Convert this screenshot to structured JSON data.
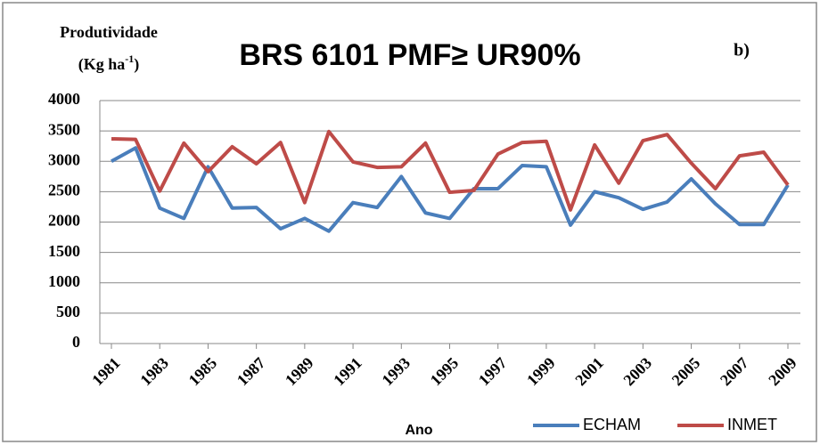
{
  "chart_data": {
    "type": "line",
    "title": "BRS 6101 PMF≥ UR90%",
    "annotation": "b)",
    "ylabel": {
      "line1": "Produtividade",
      "line2": "(Kg ha",
      "sup": "-1",
      "end": ")"
    },
    "xlabel": "Ano",
    "x": [
      1981,
      1982,
      1983,
      1984,
      1985,
      1986,
      1987,
      1988,
      1989,
      1990,
      1991,
      1992,
      1993,
      1994,
      1995,
      1996,
      1997,
      1998,
      1999,
      2000,
      2001,
      2002,
      2003,
      2004,
      2005,
      2006,
      2007,
      2008,
      2009
    ],
    "xlim": [
      1981,
      2009
    ],
    "xticks": [
      1981,
      1983,
      1985,
      1987,
      1989,
      1991,
      1993,
      1995,
      1997,
      1999,
      2001,
      2003,
      2005,
      2007,
      2009
    ],
    "ylim": [
      0,
      4000
    ],
    "yticks": [
      0,
      500,
      1000,
      1500,
      2000,
      2500,
      3000,
      3500,
      4000
    ],
    "grid": true,
    "legend": "bottom-right",
    "series": [
      {
        "name": "ECHAM",
        "color": "#4a7ebb",
        "values": [
          3000,
          3220,
          2230,
          2060,
          2910,
          2230,
          2240,
          1890,
          2060,
          1850,
          2320,
          2240,
          2750,
          2150,
          2060,
          2550,
          2550,
          2930,
          2910,
          1950,
          2500,
          2400,
          2210,
          2330,
          2710,
          2300,
          1960,
          1960,
          2610
        ]
      },
      {
        "name": "INMET",
        "color": "#be4b48",
        "values": [
          3370,
          3360,
          2510,
          3300,
          2830,
          3240,
          2960,
          3310,
          2320,
          3490,
          2990,
          2900,
          2910,
          3300,
          2490,
          2520,
          3120,
          3310,
          3330,
          2200,
          3270,
          2640,
          3340,
          3440,
          2970,
          2550,
          3090,
          3150,
          2610
        ]
      }
    ]
  }
}
